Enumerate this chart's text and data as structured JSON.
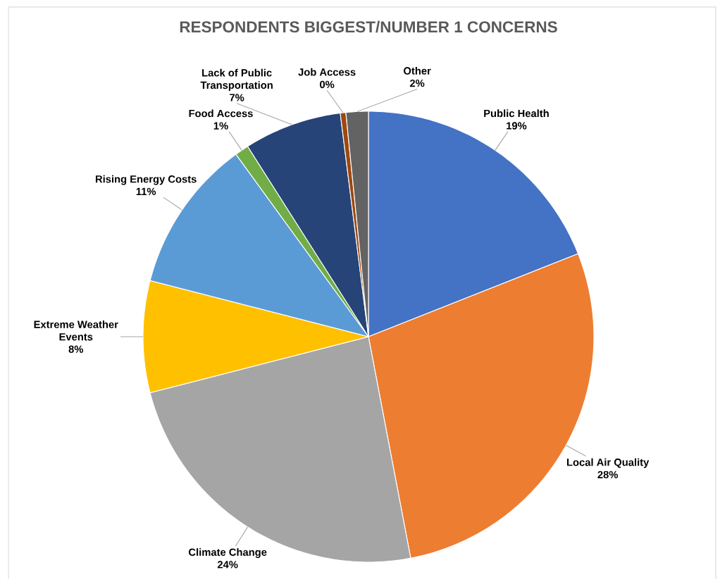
{
  "chart_data": {
    "type": "pie",
    "title": "RESPONDENTS BIGGEST/NUMBER 1 CONCERNS",
    "categories": [
      "Public Health",
      "Local Air Quality",
      "Climate Change",
      "Extreme Weather Events",
      "Rising Energy Costs",
      "Food Access",
      "Lack of Public Transportation",
      "Job Access",
      "Other"
    ],
    "values": [
      19,
      28,
      24,
      8,
      11,
      1,
      7,
      0.4,
      1.6
    ],
    "value_labels": [
      "19%",
      "28%",
      "24%",
      "8%",
      "11%",
      "1%",
      "7%",
      "0%",
      "2%"
    ],
    "colors": [
      "#4472c4",
      "#ed7d31",
      "#a5a5a5",
      "#ffc000",
      "#5b9bd5",
      "#70ad47",
      "#264478",
      "#9e480e",
      "#636363"
    ]
  }
}
